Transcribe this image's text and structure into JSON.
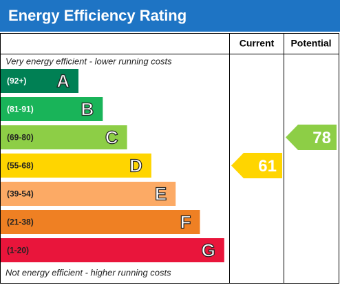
{
  "chart_data": {
    "type": "epc",
    "title": "Energy Efficiency Rating",
    "columns": [
      "Current",
      "Potential"
    ],
    "top_note": "Very energy efficient - lower running costs",
    "bottom_note": "Not energy efficient - higher running costs",
    "bands": [
      {
        "range": "(92+)",
        "letter": "A",
        "color": "#008054"
      },
      {
        "range": "(81-91)",
        "letter": "B",
        "color": "#19b459"
      },
      {
        "range": "(69-80)",
        "letter": "C",
        "color": "#8dce46"
      },
      {
        "range": "(55-68)",
        "letter": "D",
        "color": "#ffd500"
      },
      {
        "range": "(39-54)",
        "letter": "E",
        "color": "#fcaa65"
      },
      {
        "range": "(21-38)",
        "letter": "F",
        "color": "#ef8023"
      },
      {
        "range": "(1-20)",
        "letter": "G",
        "color": "#e9153b"
      }
    ],
    "values": [
      61,
      78
    ]
  }
}
